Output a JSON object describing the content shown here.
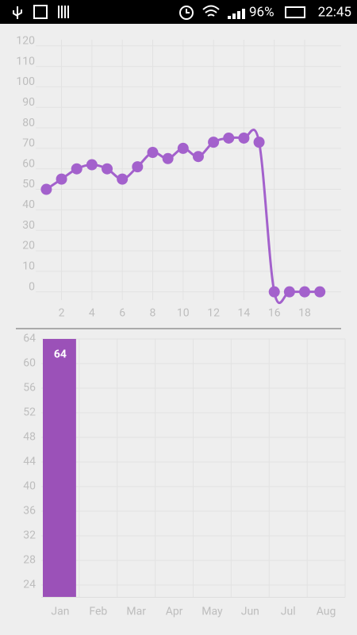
{
  "status_bar": {
    "battery": "96%",
    "time": "22:45"
  },
  "chart_data": [
    {
      "type": "line",
      "x": [
        1,
        2,
        3,
        4,
        5,
        6,
        7,
        8,
        9,
        10,
        11,
        12,
        13,
        14,
        15,
        16,
        17,
        18,
        19
      ],
      "values": [
        50,
        55,
        60,
        62,
        60,
        55,
        61,
        68,
        65,
        70,
        66,
        73,
        75,
        75,
        73,
        0,
        0,
        0,
        0
      ],
      "color": "#a361cc",
      "xlim": [
        0.3,
        20.4
      ],
      "ylim": [
        -4,
        123
      ],
      "xticks": [
        2,
        4,
        6,
        8,
        10,
        12,
        14,
        16,
        18
      ],
      "yticks": [
        0,
        10,
        20,
        30,
        40,
        50,
        60,
        70,
        80,
        90,
        100,
        110,
        120
      ],
      "grid": true
    },
    {
      "type": "bar",
      "categories": [
        "Jan",
        "Feb",
        "Mar",
        "Apr",
        "May",
        "Jun",
        "Jul",
        "Aug"
      ],
      "values": [
        64,
        null,
        null,
        null,
        null,
        null,
        null,
        null
      ],
      "color": "#9b51b8",
      "ylim": [
        22,
        64
      ],
      "yticks": [
        24,
        28,
        32,
        36,
        40,
        44,
        48,
        52,
        56,
        60,
        64
      ],
      "grid": true
    }
  ]
}
